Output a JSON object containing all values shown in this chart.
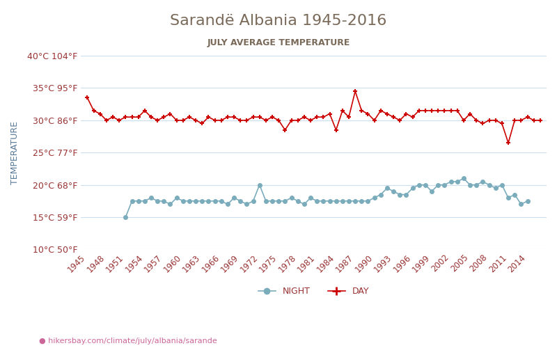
{
  "title": "Sarandë Albania 1945-2016",
  "subtitle": "JULY AVERAGE TEMPERATURE",
  "ylabel": "TEMPERATURE",
  "xlabel_url": "hikersbay.com/climate/july/albania/sarande",
  "years": [
    1945,
    1946,
    1947,
    1948,
    1949,
    1950,
    1951,
    1952,
    1953,
    1954,
    1955,
    1956,
    1957,
    1958,
    1959,
    1960,
    1961,
    1962,
    1963,
    1964,
    1965,
    1966,
    1967,
    1968,
    1969,
    1970,
    1971,
    1972,
    1973,
    1974,
    1975,
    1976,
    1977,
    1978,
    1979,
    1980,
    1981,
    1982,
    1983,
    1984,
    1985,
    1986,
    1987,
    1988,
    1989,
    1990,
    1991,
    1992,
    1993,
    1994,
    1995,
    1996,
    1997,
    1998,
    1999,
    2000,
    2001,
    2002,
    2003,
    2004,
    2005,
    2006,
    2007,
    2008,
    2009,
    2010,
    2011,
    2012,
    2013,
    2014,
    2015,
    2016
  ],
  "day_temps": [
    33.5,
    31.5,
    31.0,
    30.0,
    30.5,
    30.0,
    30.5,
    30.5,
    30.5,
    31.5,
    30.5,
    30.0,
    30.5,
    31.0,
    30.0,
    30.0,
    30.5,
    30.0,
    29.5,
    30.5,
    30.0,
    30.0,
    30.5,
    30.5,
    30.0,
    30.0,
    30.5,
    30.5,
    30.0,
    30.5,
    30.0,
    28.5,
    30.0,
    30.0,
    30.5,
    30.0,
    30.5,
    30.5,
    31.0,
    28.5,
    31.5,
    30.5,
    34.5,
    31.5,
    31.0,
    30.0,
    31.5,
    31.0,
    30.5,
    30.0,
    31.0,
    30.5,
    31.5,
    31.5,
    31.5,
    31.5,
    31.5,
    31.5,
    31.5,
    30.0,
    31.0,
    30.0,
    29.5,
    30.0,
    30.0,
    29.5,
    26.5,
    30.0,
    30.0,
    30.5,
    30.0,
    30.0
  ],
  "night_temps": [
    null,
    null,
    null,
    null,
    null,
    null,
    15.0,
    17.5,
    17.5,
    17.5,
    18.0,
    17.5,
    17.5,
    17.0,
    18.0,
    17.5,
    17.5,
    17.5,
    17.5,
    17.5,
    17.5,
    17.5,
    17.0,
    18.0,
    17.5,
    17.0,
    17.5,
    20.0,
    17.5,
    17.5,
    17.5,
    17.5,
    18.0,
    17.5,
    17.0,
    18.0,
    17.5,
    17.5,
    17.5,
    17.5,
    17.5,
    17.5,
    17.5,
    17.5,
    17.5,
    18.0,
    18.5,
    19.5,
    19.0,
    18.5,
    18.5,
    19.5,
    20.0,
    20.0,
    19.0,
    20.0,
    20.0,
    20.5,
    20.5,
    21.0,
    20.0,
    20.0,
    20.5,
    20.0,
    19.5,
    20.0,
    18.0,
    18.5,
    17.0,
    17.5,
    null,
    null
  ],
  "ylim_min": 10,
  "ylim_max": 40,
  "yticks_c": [
    10,
    15,
    20,
    25,
    30,
    35,
    40
  ],
  "yticks_f": [
    50,
    59,
    68,
    77,
    86,
    95,
    104
  ],
  "day_color": "#cc0000",
  "night_color": "#7aacbc",
  "title_color": "#7a6a5a",
  "subtitle_color": "#7a6a5a",
  "ylabel_color": "#5a7a9a",
  "tick_color": "#993333",
  "url_color": "#cc6699",
  "grid_color": "#ccddee",
  "bg_color": "#ffffff"
}
